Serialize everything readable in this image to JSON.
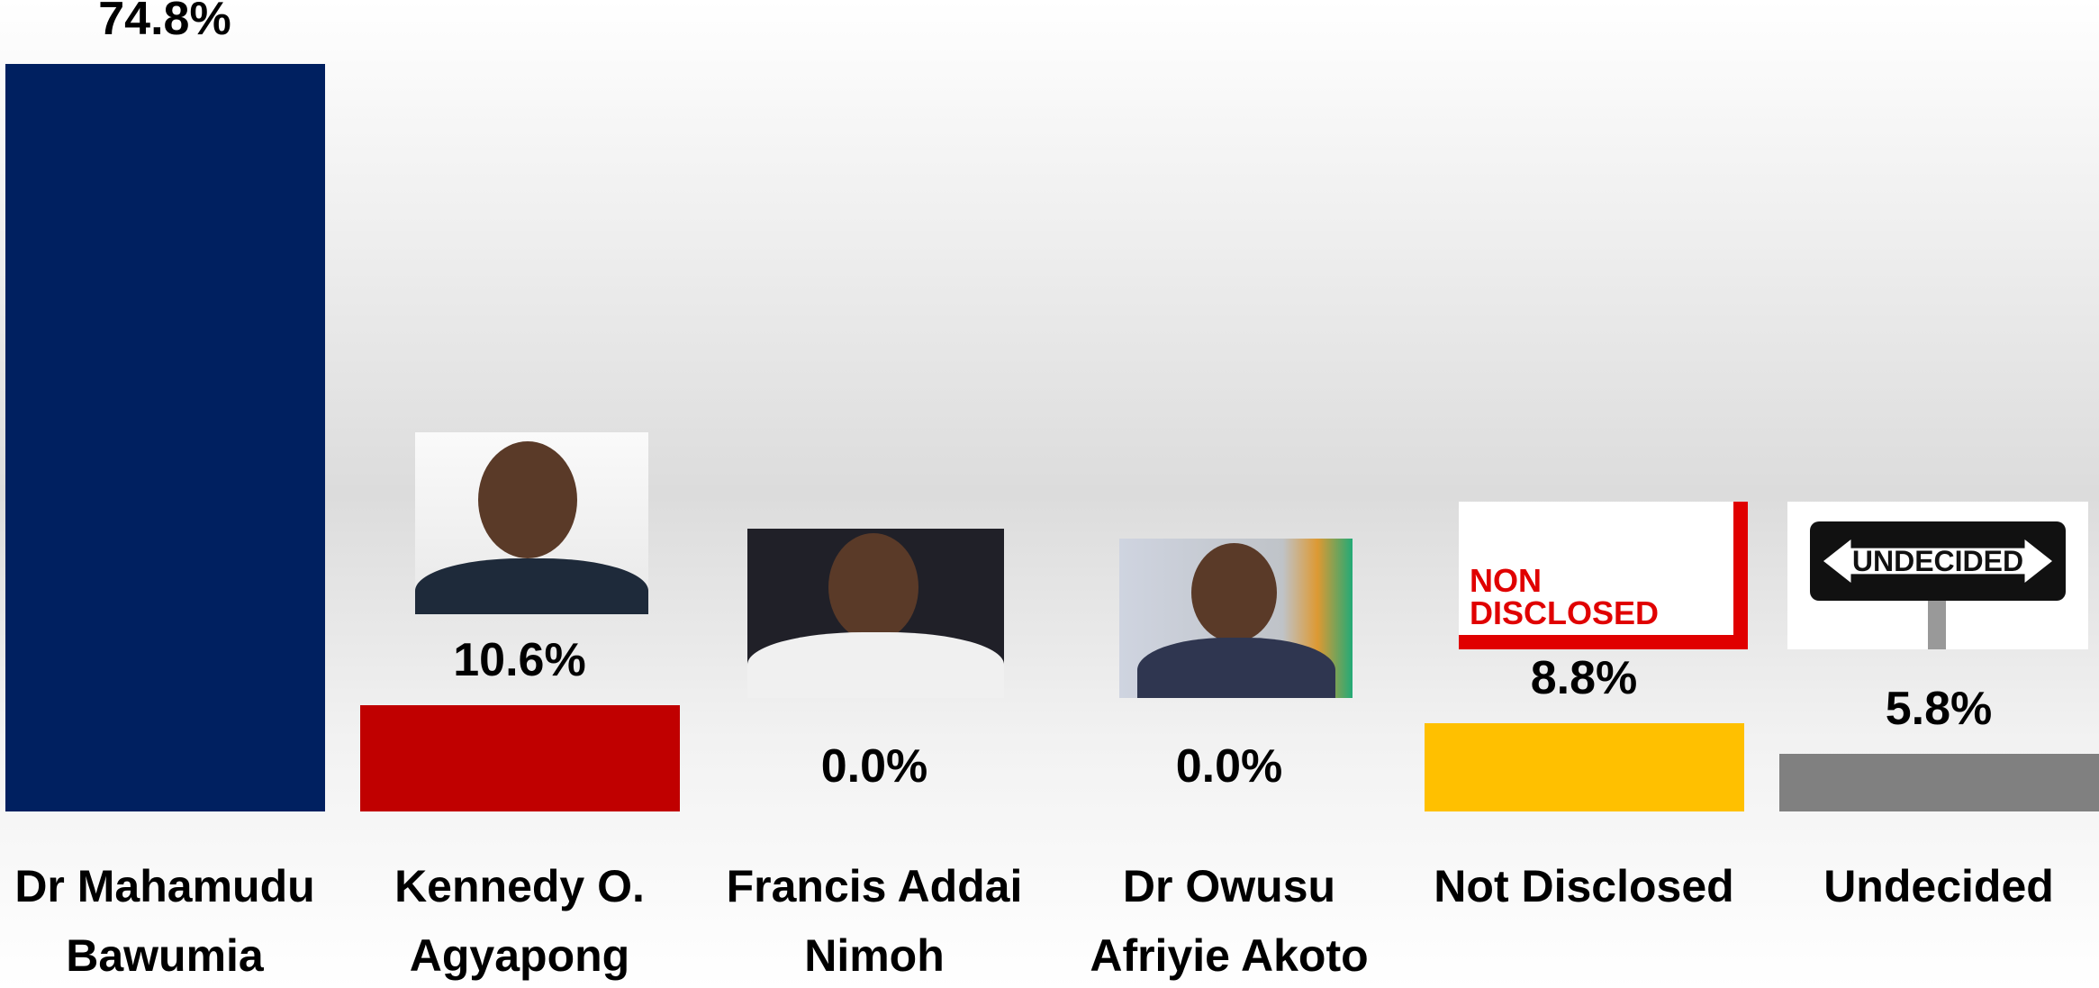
{
  "chart_data": {
    "type": "bar",
    "categories": [
      "Dr Mahamudu Bawumia",
      "Kennedy O. Agyapong",
      "Francis Addai Nimoh",
      "Dr Owusu Afriyie Akoto",
      "Not Disclosed",
      "Undecided"
    ],
    "values": [
      74.8,
      10.6,
      0.0,
      0.0,
      8.8,
      5.8
    ],
    "value_labels": [
      "74.8%",
      "10.6%",
      "0.0%",
      "0.0%",
      "8.8%",
      "5.8%"
    ],
    "colors": [
      "#002060",
      "#c00000",
      "#a5a5a5",
      "#4472c4",
      "#ffc000",
      "#808080"
    ],
    "annotations": [
      "NON",
      "DISCLOSED",
      "UNDECIDED"
    ]
  }
}
